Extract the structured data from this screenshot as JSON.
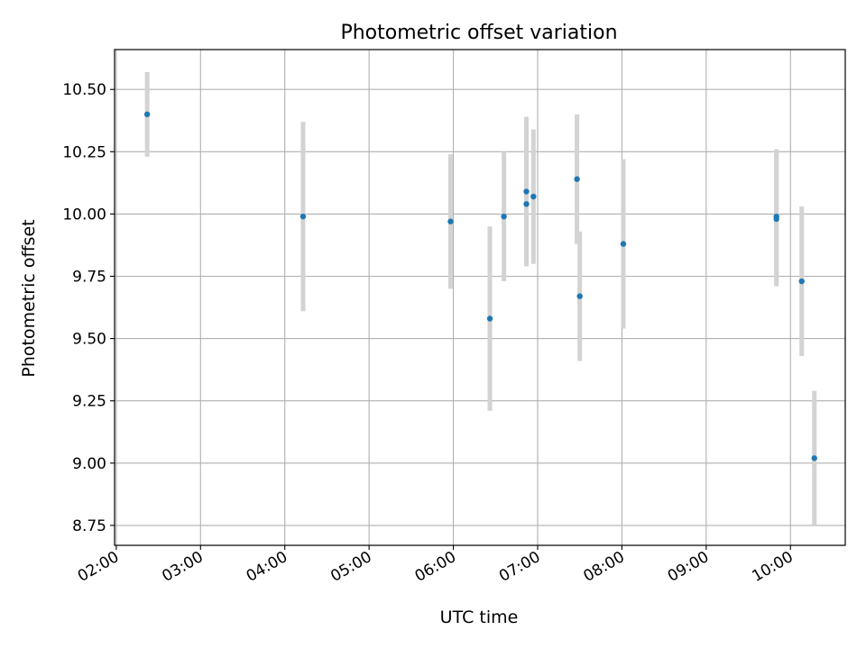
{
  "chart_data": {
    "type": "scatter",
    "title": "Photometric offset variation",
    "xlabel": "UTC time",
    "ylabel": "Photometric offset",
    "x_unit": "UTC time (hours)",
    "xlim": [
      1.98,
      10.65
    ],
    "ylim": [
      8.67,
      10.66
    ],
    "xticks": [
      {
        "value": 2,
        "label": "02:00"
      },
      {
        "value": 3,
        "label": "03:00"
      },
      {
        "value": 4,
        "label": "04:00"
      },
      {
        "value": 5,
        "label": "05:00"
      },
      {
        "value": 6,
        "label": "06:00"
      },
      {
        "value": 7,
        "label": "07:00"
      },
      {
        "value": 8,
        "label": "08:00"
      },
      {
        "value": 9,
        "label": "09:00"
      },
      {
        "value": 10,
        "label": "10:00"
      }
    ],
    "yticks": [
      {
        "value": 8.75,
        "label": "8.75"
      },
      {
        "value": 9.0,
        "label": "9.00"
      },
      {
        "value": 9.25,
        "label": "9.25"
      },
      {
        "value": 9.5,
        "label": "9.50"
      },
      {
        "value": 9.75,
        "label": "9.75"
      },
      {
        "value": 10.0,
        "label": "10.00"
      },
      {
        "value": 10.25,
        "label": "10.25"
      },
      {
        "value": 10.5,
        "label": "10.50"
      }
    ],
    "grid": true,
    "error_bars": "vertical",
    "points": [
      {
        "time": "02:22",
        "y": 10.4,
        "err": 0.17
      },
      {
        "time": "04:13",
        "y": 9.99,
        "err": 0.38
      },
      {
        "time": "05:58",
        "y": 9.97,
        "err": 0.27
      },
      {
        "time": "06:26",
        "y": 9.58,
        "err": 0.37
      },
      {
        "time": "06:36",
        "y": 9.99,
        "err": 0.26
      },
      {
        "time": "06:52",
        "y": 10.04,
        "err": 0.24
      },
      {
        "time": "06:52",
        "y": 10.09,
        "err": 0.3
      },
      {
        "time": "06:57",
        "y": 10.07,
        "err": 0.27
      },
      {
        "time": "07:28",
        "y": 10.14,
        "err": 0.26
      },
      {
        "time": "07:30",
        "y": 9.67,
        "err": 0.26
      },
      {
        "time": "08:01",
        "y": 9.88,
        "err": 0.34
      },
      {
        "time": "09:50",
        "y": 9.98,
        "err": 0.27
      },
      {
        "time": "09:50",
        "y": 9.99,
        "err": 0.27
      },
      {
        "time": "10:08",
        "y": 9.73,
        "err": 0.3
      },
      {
        "time": "10:17",
        "y": 9.02,
        "err": 0.27
      }
    ],
    "colors": {
      "marker": "#1f77b4",
      "errorbar": "#d3d3d3",
      "grid": "#b0b0b0",
      "axes": "#000000"
    }
  }
}
